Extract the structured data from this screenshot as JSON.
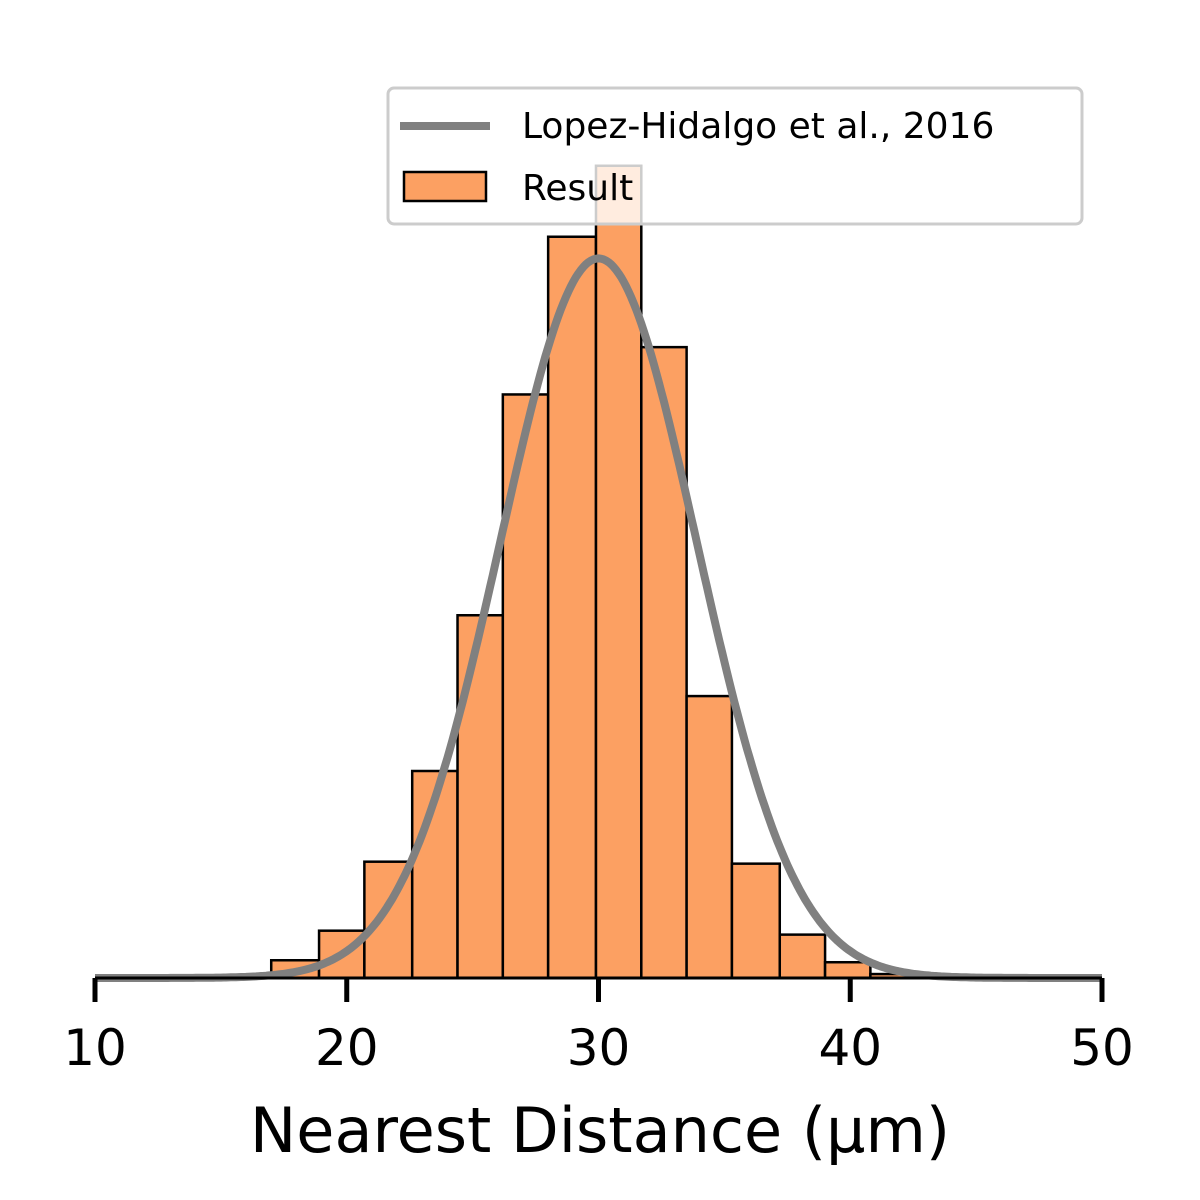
{
  "chart_data": {
    "type": "bar",
    "title": "",
    "xlabel": "Nearest Distance  (μm)",
    "ylabel": "",
    "xlim": [
      10,
      50
    ],
    "xticks": [
      10,
      20,
      30,
      40,
      50
    ],
    "y_axis_visible": false,
    "grid": false,
    "legend_placement": "top-right",
    "histogram": {
      "name": "Result",
      "bin_edges": [
        15.2,
        17.0,
        18.9,
        20.7,
        22.6,
        24.4,
        26.2,
        28.0,
        29.9,
        31.7,
        33.5,
        35.3,
        37.2,
        39.0,
        40.8,
        42.6
      ],
      "values": [
        0.001,
        0.009,
        0.024,
        0.059,
        0.105,
        0.184,
        0.296,
        0.376,
        0.412,
        0.32,
        0.143,
        0.058,
        0.022,
        0.008,
        0.002
      ],
      "ylim": [
        0,
        0.42
      ],
      "fill_color": "#fca062",
      "edge_color": "#000000"
    },
    "curve": {
      "name": "Lopez-Hidalgo et al., 2016",
      "type": "normal",
      "mean": 30.0,
      "sd": 3.9,
      "color": "#808080"
    }
  }
}
